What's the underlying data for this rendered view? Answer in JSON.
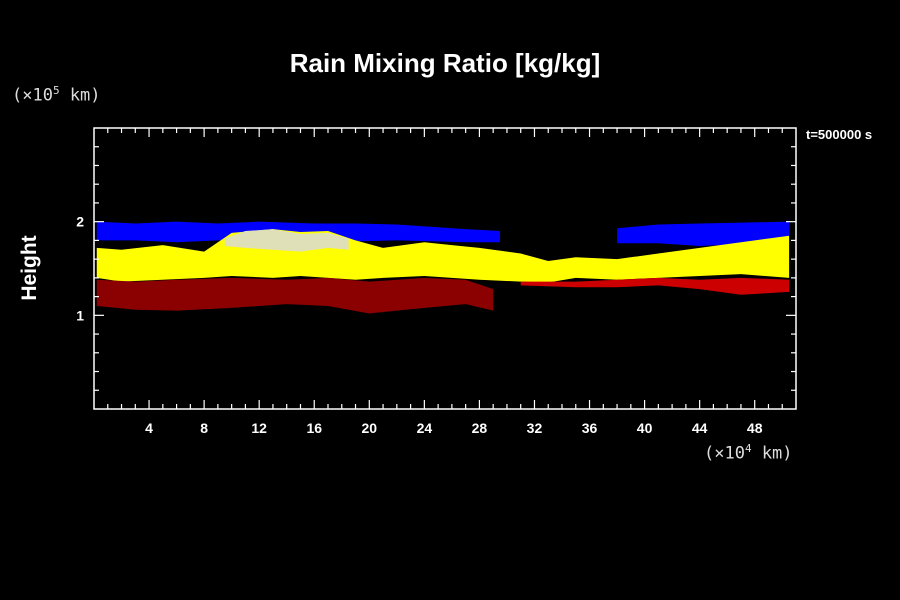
{
  "chart_data": {
    "type": "heatmap",
    "title": "Rain Mixing Ratio [kg/kg]",
    "ylabel": "Height",
    "y_unit": {
      "prefix": "(×10",
      "exp": "5",
      "suffix": " km)"
    },
    "x_unit": {
      "prefix": "(×10",
      "exp": "4",
      "suffix": " km)"
    },
    "annotation": "t=500000 s",
    "xlim": [
      0,
      51
    ],
    "ylim": [
      0,
      3
    ],
    "x_ticks": [
      4,
      8,
      12,
      16,
      20,
      24,
      28,
      32,
      36,
      40,
      44,
      48
    ],
    "y_ticks": [
      1,
      2
    ],
    "layers": [
      {
        "color": "#0000ff",
        "x": [
          0.2,
          3,
          6,
          9,
          12,
          16,
          19,
          22,
          27,
          29.5,
          29.5,
          27,
          22,
          19,
          16,
          12,
          9,
          6,
          3,
          0.2
        ],
        "y": [
          2.0,
          1.98,
          2.0,
          1.98,
          2.0,
          1.98,
          1.98,
          1.97,
          1.92,
          1.9,
          1.78,
          1.78,
          1.8,
          1.79,
          1.78,
          1.78,
          1.8,
          1.78,
          1.8,
          1.8
        ]
      },
      {
        "color": "#0000ff",
        "x": [
          38,
          41,
          44,
          47,
          50.5,
          50.5,
          47,
          44,
          41,
          38
        ],
        "y": [
          1.93,
          1.97,
          1.98,
          1.99,
          2.0,
          1.75,
          1.76,
          1.74,
          1.77,
          1.77
        ]
      },
      {
        "color": "#ffff00",
        "x": [
          0.2,
          2,
          5,
          8,
          10,
          13,
          15,
          17,
          19,
          21,
          24,
          26,
          28,
          31,
          33,
          35,
          38,
          41,
          44,
          47,
          50.5,
          50.5,
          47,
          44,
          41,
          38,
          35,
          33,
          31,
          28,
          26,
          24,
          21,
          19,
          17,
          15,
          13,
          10,
          8,
          5,
          2,
          0.2
        ],
        "y": [
          1.72,
          1.7,
          1.75,
          1.68,
          1.88,
          1.92,
          1.89,
          1.9,
          1.8,
          1.72,
          1.78,
          1.75,
          1.72,
          1.66,
          1.58,
          1.62,
          1.6,
          1.66,
          1.72,
          1.78,
          1.85,
          1.4,
          1.44,
          1.42,
          1.4,
          1.38,
          1.4,
          1.35,
          1.36,
          1.38,
          1.4,
          1.42,
          1.4,
          1.38,
          1.4,
          1.42,
          1.4,
          1.42,
          1.4,
          1.38,
          1.36,
          1.4
        ]
      },
      {
        "color": "#e0e0b8",
        "x": [
          9.5,
          11,
          13,
          15,
          17,
          18.5,
          18.5,
          17,
          15,
          13,
          11,
          9.5
        ],
        "y": [
          1.82,
          1.9,
          1.92,
          1.87,
          1.88,
          1.82,
          1.7,
          1.72,
          1.68,
          1.7,
          1.72,
          1.74
        ]
      },
      {
        "color": "#8b0000",
        "x": [
          0.2,
          3,
          6,
          10,
          14,
          17,
          20,
          24,
          27,
          29,
          29,
          27,
          24,
          20,
          17,
          14,
          10,
          6,
          3,
          0.2
        ],
        "y": [
          1.38,
          1.36,
          1.38,
          1.4,
          1.38,
          1.4,
          1.36,
          1.4,
          1.38,
          1.28,
          1.05,
          1.12,
          1.08,
          1.02,
          1.1,
          1.12,
          1.08,
          1.05,
          1.06,
          1.1
        ]
      },
      {
        "color": "#cc0000",
        "x": [
          31,
          35,
          38,
          41,
          44,
          47,
          50.5,
          50.5,
          47,
          44,
          41,
          38,
          35,
          31
        ],
        "y": [
          1.36,
          1.36,
          1.38,
          1.4,
          1.38,
          1.4,
          1.38,
          1.25,
          1.22,
          1.28,
          1.32,
          1.3,
          1.3,
          1.32
        ]
      }
    ]
  }
}
